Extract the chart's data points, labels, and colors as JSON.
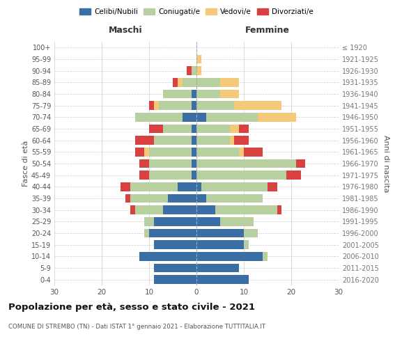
{
  "age_groups": [
    "0-4",
    "5-9",
    "10-14",
    "15-19",
    "20-24",
    "25-29",
    "30-34",
    "35-39",
    "40-44",
    "45-49",
    "50-54",
    "55-59",
    "60-64",
    "65-69",
    "70-74",
    "75-79",
    "80-84",
    "85-89",
    "90-94",
    "95-99",
    "100+"
  ],
  "birth_years": [
    "2016-2020",
    "2011-2015",
    "2006-2010",
    "2001-2005",
    "1996-2000",
    "1991-1995",
    "1986-1990",
    "1981-1985",
    "1976-1980",
    "1971-1975",
    "1966-1970",
    "1961-1965",
    "1956-1960",
    "1951-1955",
    "1946-1950",
    "1941-1945",
    "1936-1940",
    "1931-1935",
    "1926-1930",
    "1921-1925",
    "≤ 1920"
  ],
  "male": {
    "celibi": [
      9,
      9,
      12,
      9,
      10,
      9,
      7,
      6,
      4,
      1,
      1,
      1,
      1,
      1,
      3,
      1,
      1,
      0,
      0,
      0,
      0
    ],
    "coniugati": [
      0,
      0,
      0,
      0,
      1,
      2,
      6,
      8,
      10,
      9,
      9,
      9,
      8,
      6,
      10,
      7,
      6,
      3,
      1,
      0,
      0
    ],
    "vedovi": [
      0,
      0,
      0,
      0,
      0,
      0,
      0,
      0,
      0,
      0,
      0,
      1,
      0,
      0,
      0,
      1,
      0,
      1,
      0,
      0,
      0
    ],
    "divorziati": [
      0,
      0,
      0,
      0,
      0,
      0,
      1,
      1,
      2,
      2,
      2,
      2,
      4,
      3,
      0,
      1,
      0,
      1,
      1,
      0,
      0
    ]
  },
  "female": {
    "nubili": [
      11,
      9,
      14,
      10,
      10,
      5,
      4,
      2,
      1,
      0,
      0,
      0,
      0,
      0,
      2,
      0,
      0,
      0,
      0,
      0,
      0
    ],
    "coniugate": [
      0,
      0,
      1,
      1,
      3,
      7,
      13,
      12,
      14,
      19,
      21,
      9,
      7,
      7,
      11,
      8,
      5,
      5,
      0,
      0,
      0
    ],
    "vedove": [
      0,
      0,
      0,
      0,
      0,
      0,
      0,
      0,
      0,
      0,
      0,
      1,
      1,
      2,
      8,
      10,
      4,
      4,
      1,
      1,
      0
    ],
    "divorziate": [
      0,
      0,
      0,
      0,
      0,
      0,
      1,
      0,
      2,
      3,
      2,
      4,
      3,
      2,
      0,
      0,
      0,
      0,
      0,
      0,
      0
    ]
  },
  "colors": {
    "celibi": "#3a6ea5",
    "coniugati": "#b8cfa0",
    "vedovi": "#f5c97a",
    "divorziati": "#d94040"
  },
  "xlim": 30,
  "title": "Popolazione per età, sesso e stato civile - 2021",
  "subtitle": "COMUNE DI STREMBO (TN) - Dati ISTAT 1° gennaio 2021 - Elaborazione TUTTITALIA.IT",
  "ylabel_left": "Fasce di età",
  "ylabel_right": "Anni di nascita",
  "xlabel_left": "Maschi",
  "xlabel_right": "Femmine"
}
